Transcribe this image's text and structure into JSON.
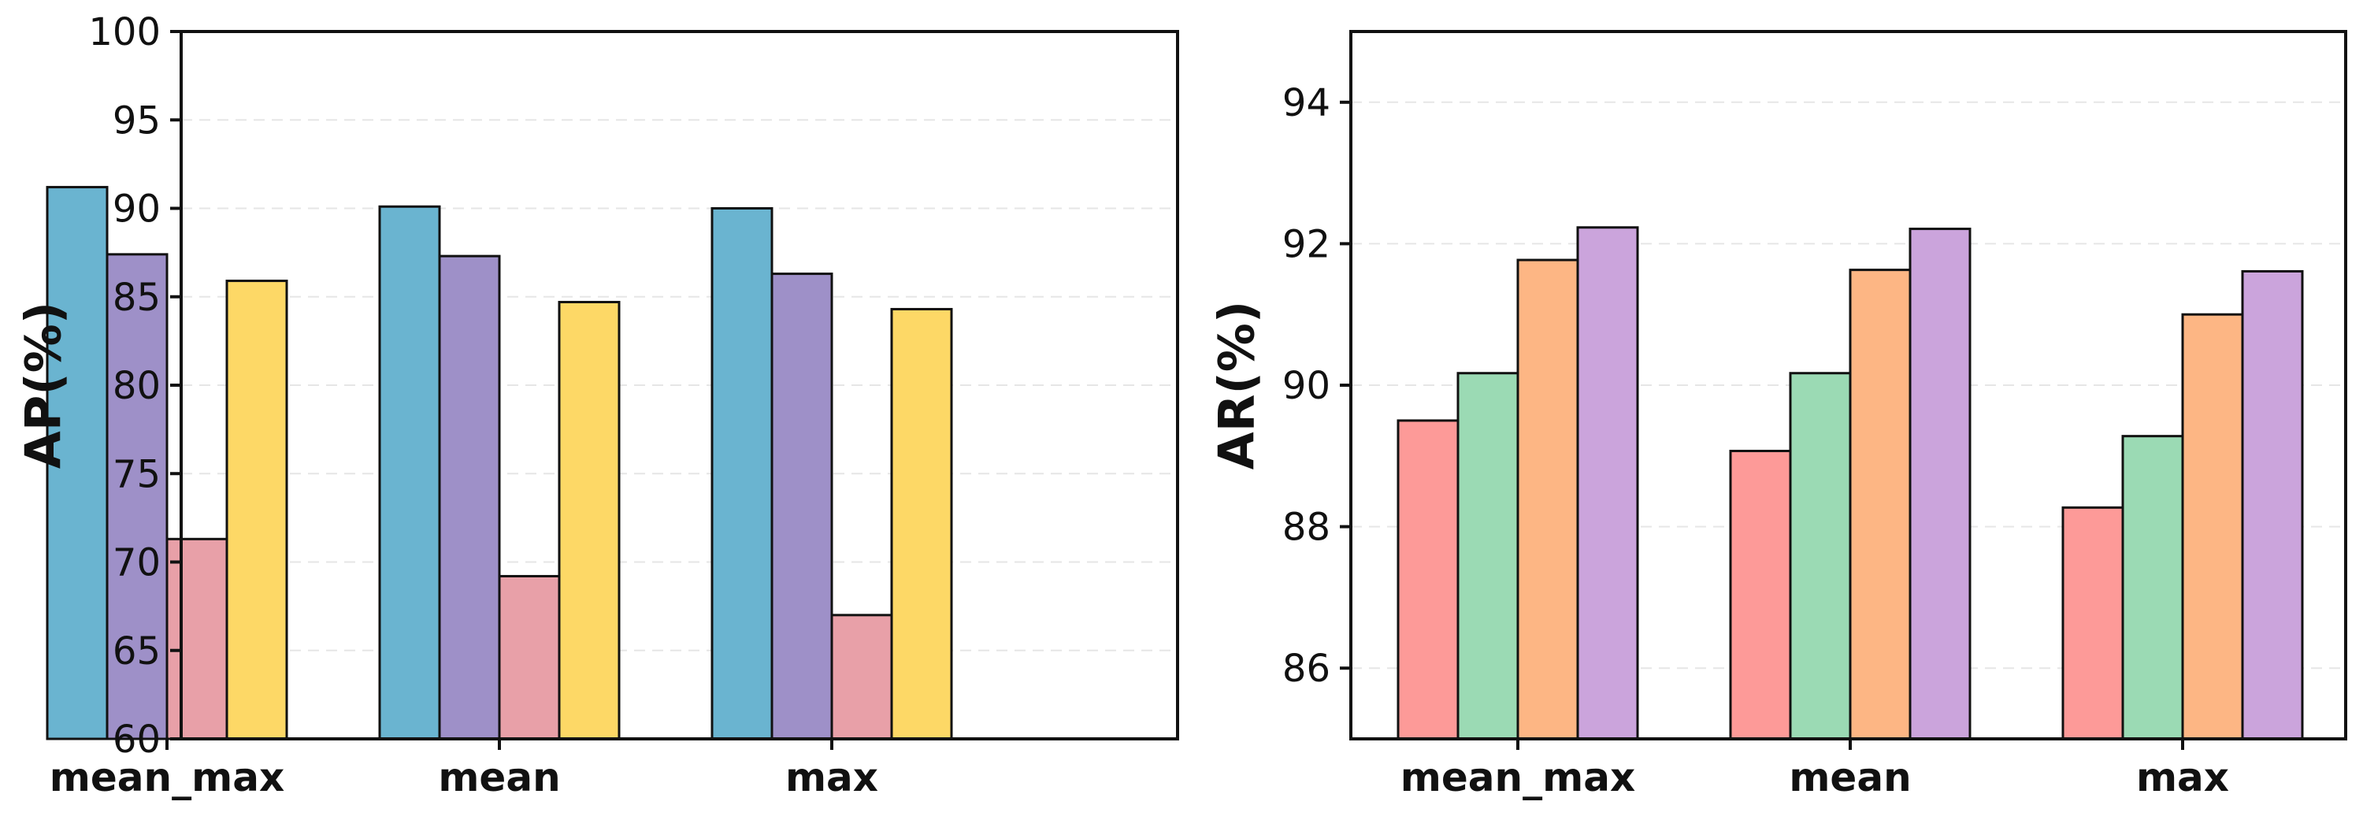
{
  "chart_data": [
    {
      "type": "bar",
      "ylabel": "AP(%)",
      "xlabel": "",
      "categories": [
        "mean_max",
        "mean",
        "max"
      ],
      "ylim": [
        60,
        100
      ],
      "yticks": [
        60,
        65,
        70,
        75,
        80,
        85,
        90,
        95,
        100
      ],
      "grid": "horizontal dashed",
      "series": [
        {
          "color": "#6ab4d0",
          "values": [
            91.2,
            90.1,
            90.0
          ]
        },
        {
          "color": "#9e90c8",
          "values": [
            87.4,
            87.3,
            86.3
          ]
        },
        {
          "color": "#e8a0a8",
          "values": [
            71.3,
            69.2,
            67.0
          ]
        },
        {
          "color": "#fdd866",
          "values": [
            85.9,
            84.7,
            84.3
          ]
        }
      ]
    },
    {
      "type": "bar",
      "ylabel": "AR(%)",
      "xlabel": "",
      "categories": [
        "mean_max",
        "mean",
        "max"
      ],
      "ylim": [
        85,
        95
      ],
      "yticks": [
        86,
        88,
        90,
        92,
        94
      ],
      "grid": "horizontal dashed",
      "series": [
        {
          "color": "#fd9a98",
          "values": [
            89.5,
            89.07,
            88.27
          ]
        },
        {
          "color": "#9bdab4",
          "values": [
            90.17,
            90.17,
            89.28
          ]
        },
        {
          "color": "#fdb684",
          "values": [
            91.77,
            91.63,
            91.0
          ]
        },
        {
          "color": "#cba4dc",
          "values": [
            92.23,
            92.21,
            91.61
          ]
        }
      ]
    }
  ]
}
